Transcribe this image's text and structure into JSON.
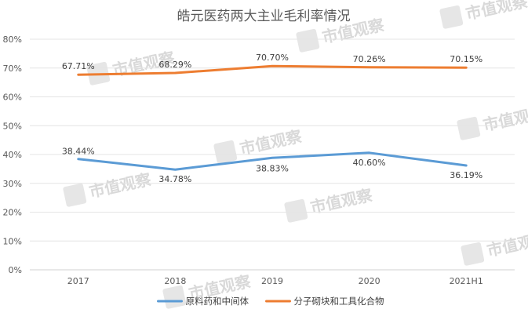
{
  "watermark": {
    "text": "市值观察",
    "color": "#d9d9d9"
  },
  "chart_data": {
    "type": "line",
    "title": "皓元医药两大主业毛利率情况",
    "categories": [
      "2017",
      "2018",
      "2019",
      "2020",
      "2021H1"
    ],
    "ylim": [
      0,
      80
    ],
    "yticks": [
      0,
      10,
      20,
      30,
      40,
      50,
      60,
      70,
      80
    ],
    "ytick_labels": [
      "0%",
      "10%",
      "20%",
      "30%",
      "40%",
      "50%",
      "60%",
      "70%",
      "80%"
    ],
    "grid": true,
    "legend_position": "bottom",
    "series": [
      {
        "name": "原料药和中间体",
        "color": "#5b9bd5",
        "values": [
          38.44,
          34.78,
          38.83,
          40.6,
          36.19
        ],
        "labels": [
          "38.44%",
          "34.78%",
          "38.83%",
          "40.60%",
          "36.19%"
        ]
      },
      {
        "name": "分子砌块和工具化合物",
        "color": "#ed7d31",
        "values": [
          67.71,
          68.29,
          70.7,
          70.26,
          70.15
        ],
        "labels": [
          "67.71%",
          "68.29%",
          "70.70%",
          "70.26%",
          "70.15%"
        ]
      }
    ]
  }
}
